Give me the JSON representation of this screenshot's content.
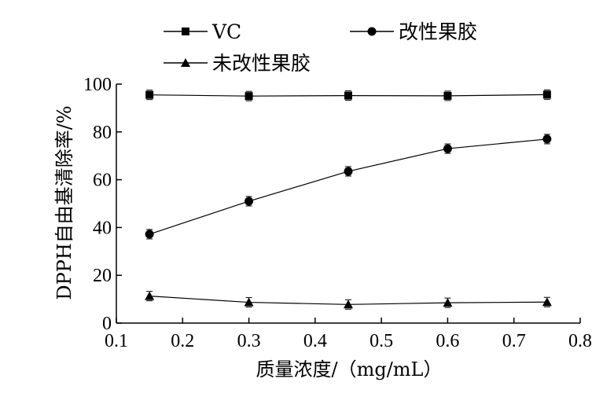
{
  "chart_data": {
    "type": "line",
    "xlabel": "质量浓度/（mg/mL）",
    "ylabel": "DPPH自由基清除率/%",
    "xlim": [
      0.1,
      0.8
    ],
    "ylim": [
      0,
      100
    ],
    "xticks": [
      "0.1",
      "0.2",
      "0.3",
      "0.4",
      "0.5",
      "0.6",
      "0.7",
      "0.8"
    ],
    "yticks": [
      "0",
      "20",
      "40",
      "60",
      "80",
      "100"
    ],
    "x": [
      0.15,
      0.3,
      0.45,
      0.6,
      0.75
    ],
    "grid": false,
    "legend_position": "top",
    "series": [
      {
        "name": "VC",
        "marker": "square",
        "color": "#000000",
        "values": [
          95.5,
          95.0,
          95.2,
          95.1,
          95.6
        ]
      },
      {
        "name": "改性果胶",
        "marker": "circle",
        "color": "#000000",
        "values": [
          37.2,
          51.0,
          63.5,
          73.0,
          77.0
        ]
      },
      {
        "name": "未改性果胶",
        "marker": "triangle",
        "color": "#000000",
        "values": [
          11.3,
          8.7,
          7.8,
          8.5,
          8.8
        ]
      }
    ]
  }
}
